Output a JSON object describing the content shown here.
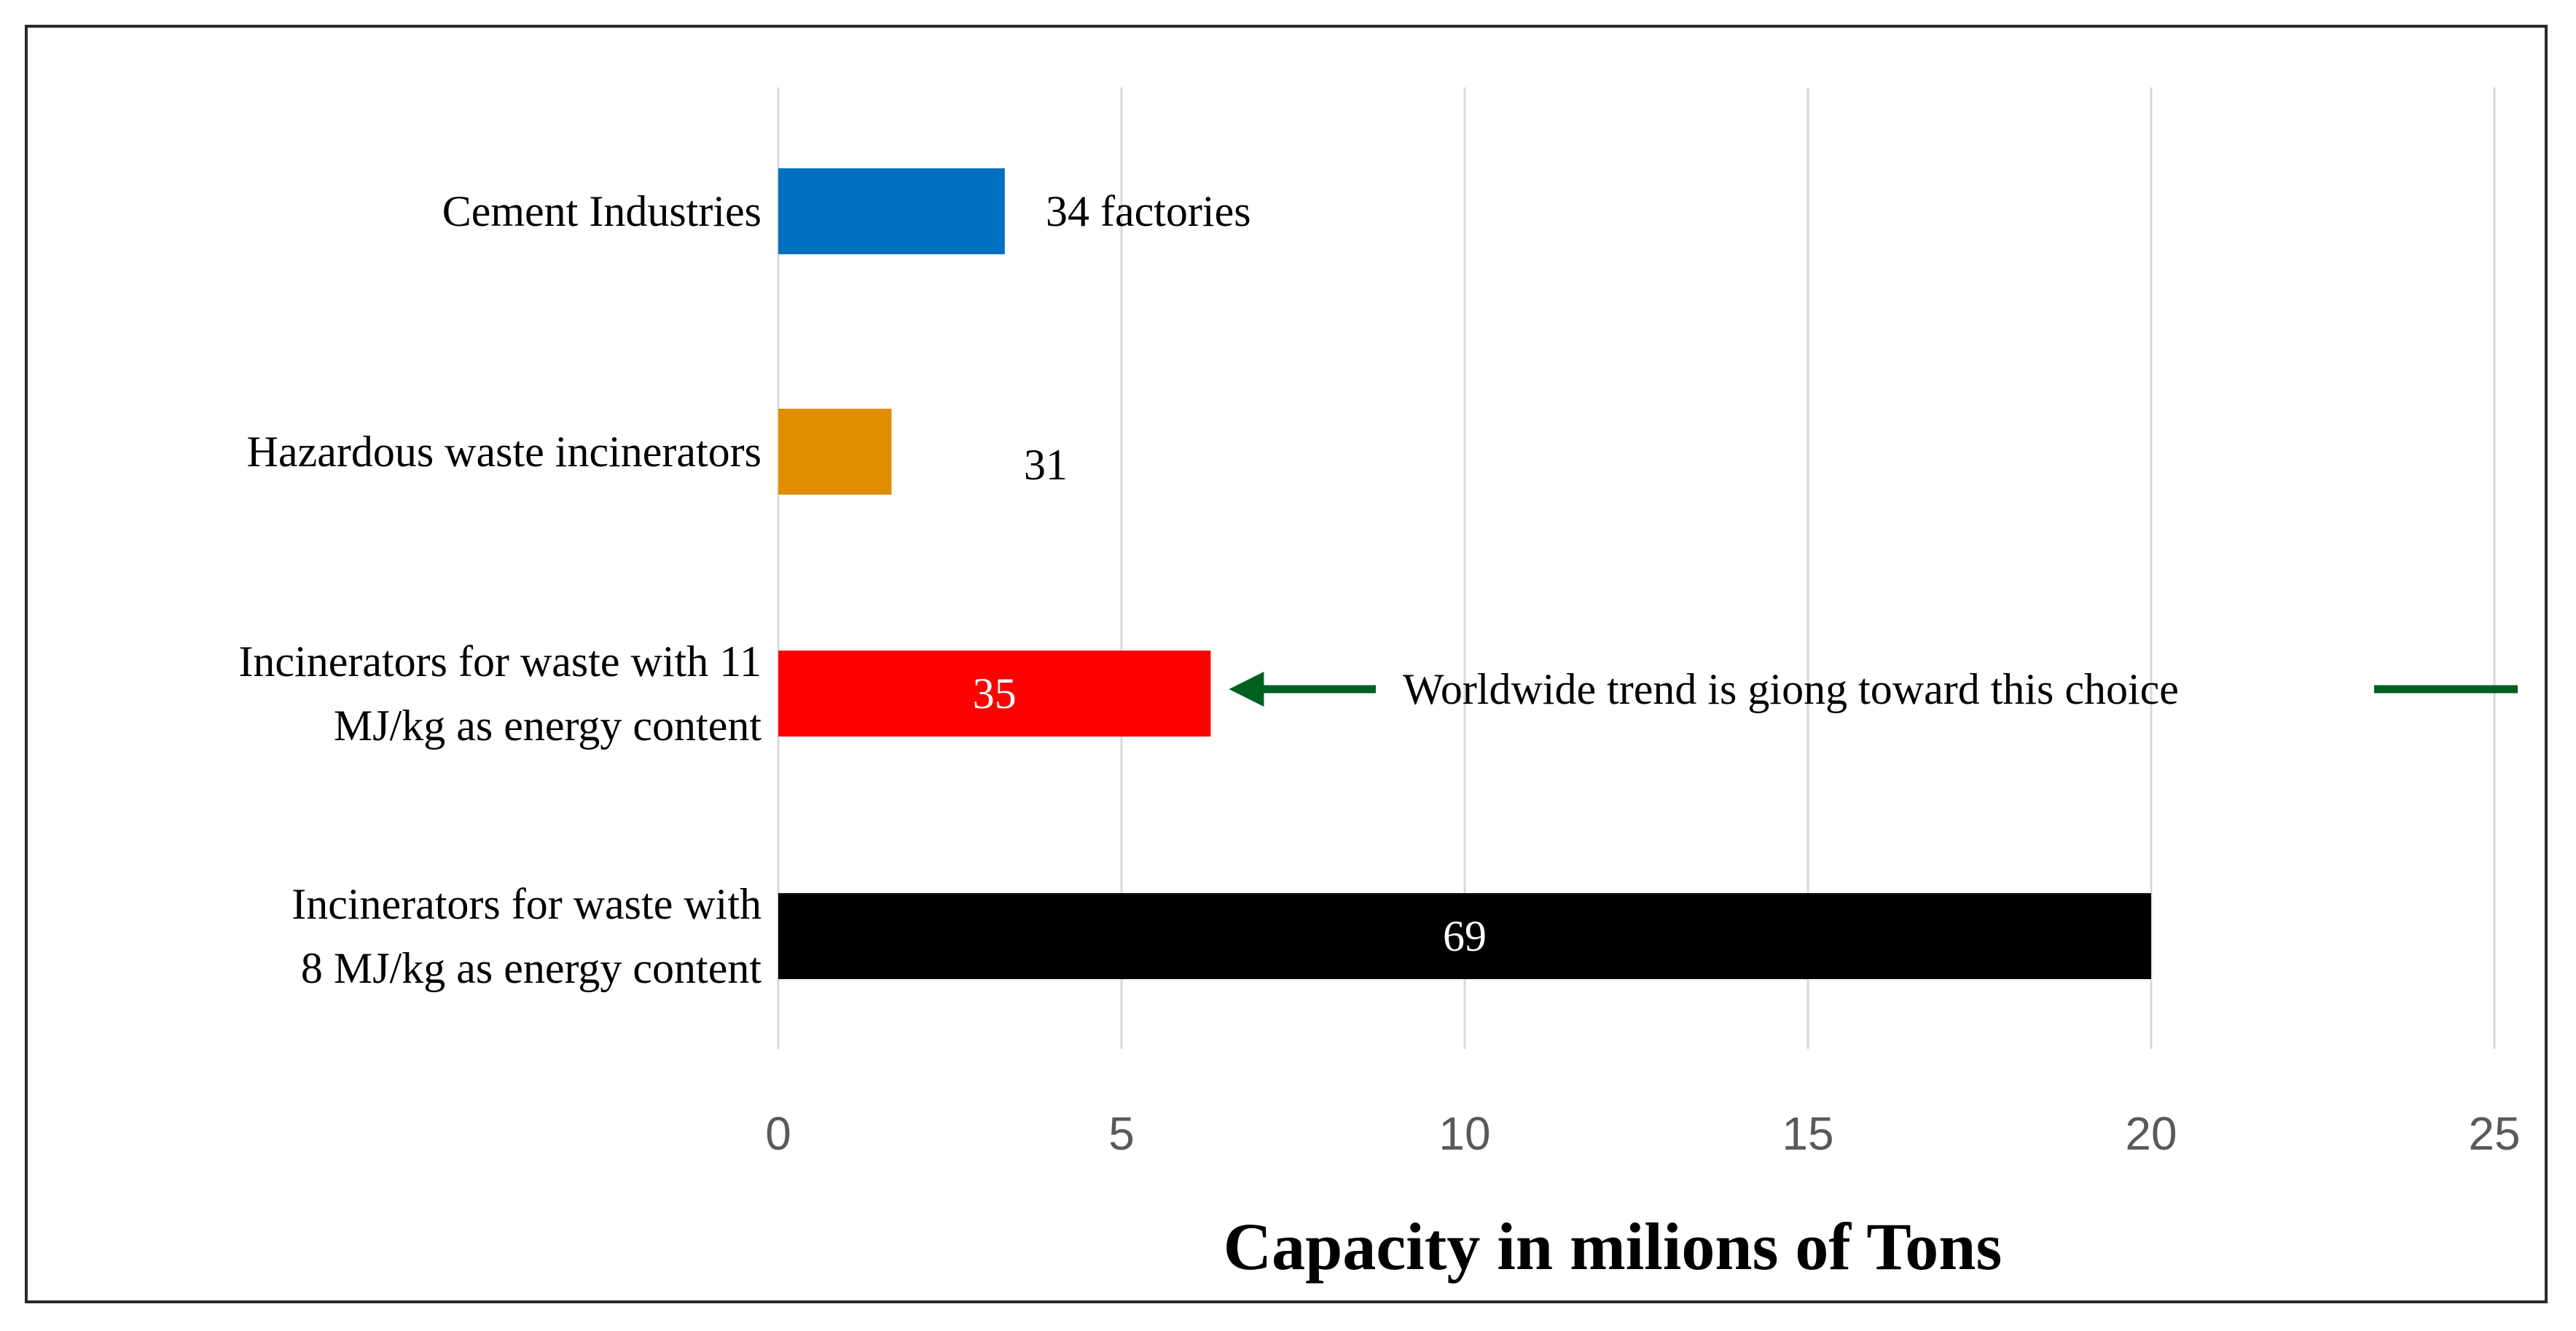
{
  "chart_data": {
    "type": "bar",
    "orientation": "horizontal",
    "categories": [
      [
        "Cement Industries"
      ],
      [
        "Hazardous waste incinerators"
      ],
      [
        "Incinerators for waste with 11",
        "MJ/kg as energy content"
      ],
      [
        "Incinerators for waste with",
        "8 MJ/kg as energy content"
      ]
    ],
    "values": [
      3.3,
      1.65,
      6.3,
      20.0
    ],
    "data_labels": [
      "34 factories",
      "31",
      "35",
      "69"
    ],
    "bar_colors": [
      "#0070c0",
      "#e08e00",
      "#ff0000",
      "#000000"
    ],
    "data_label_colors": [
      "#000000",
      "#000000",
      "#ffffff",
      "#ffffff"
    ],
    "data_label_placement": [
      "outside",
      "outside",
      "inside",
      "inside"
    ],
    "xlim": [
      0,
      25
    ],
    "xticks": [
      0,
      5,
      10,
      15,
      20,
      25
    ],
    "xlabel": "Capacity in milions of Tons",
    "grid": "vertical",
    "annotation": {
      "text": "Worldwide trend is giong toward this choice",
      "target_category_index": 2,
      "arrow_color": "#006020"
    }
  }
}
